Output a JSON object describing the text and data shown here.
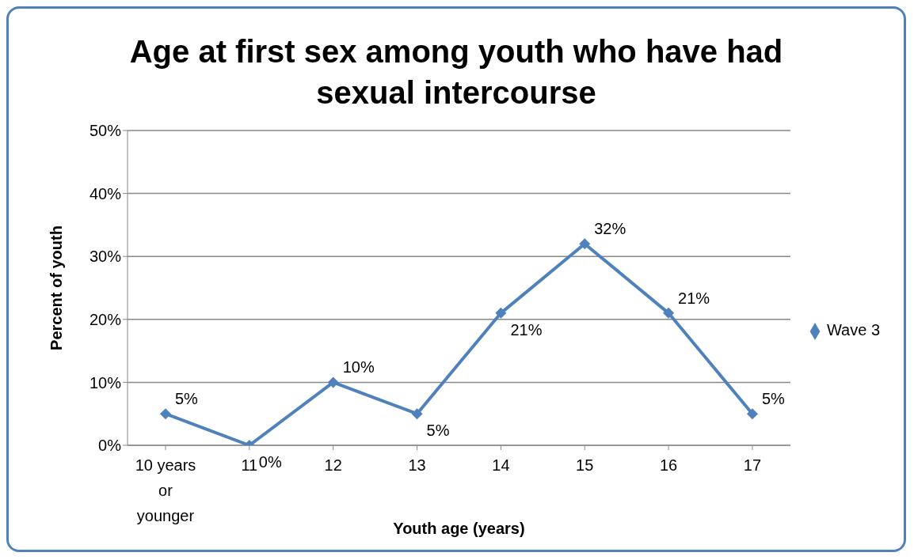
{
  "chart_data": {
    "type": "line",
    "title": "Age at first sex among youth who have had sexual intercourse",
    "xlabel": "Youth age (years)",
    "ylabel": "Percent  of youth",
    "categories": [
      "10 years or younger",
      "11",
      "12",
      "13",
      "14",
      "15",
      "16",
      "17"
    ],
    "series": [
      {
        "name": "Wave 3",
        "color": "#4f81bd",
        "values": [
          5,
          0,
          10,
          5,
          21,
          32,
          21,
          5
        ],
        "value_labels": [
          "5%",
          "0%",
          "10%",
          "5%",
          "21%",
          "32%",
          "21%",
          "5%"
        ]
      }
    ],
    "ylim": [
      0,
      50
    ],
    "yticks": [
      {
        "value": 0,
        "label": "0%"
      },
      {
        "value": 10,
        "label": "10%"
      },
      {
        "value": 20,
        "label": "20%"
      },
      {
        "value": 30,
        "label": "30%"
      },
      {
        "value": 40,
        "label": "40%"
      },
      {
        "value": 50,
        "label": "50%"
      }
    ],
    "grid": "y",
    "legend": "right",
    "marker": "diamond",
    "line_style": "solid"
  }
}
